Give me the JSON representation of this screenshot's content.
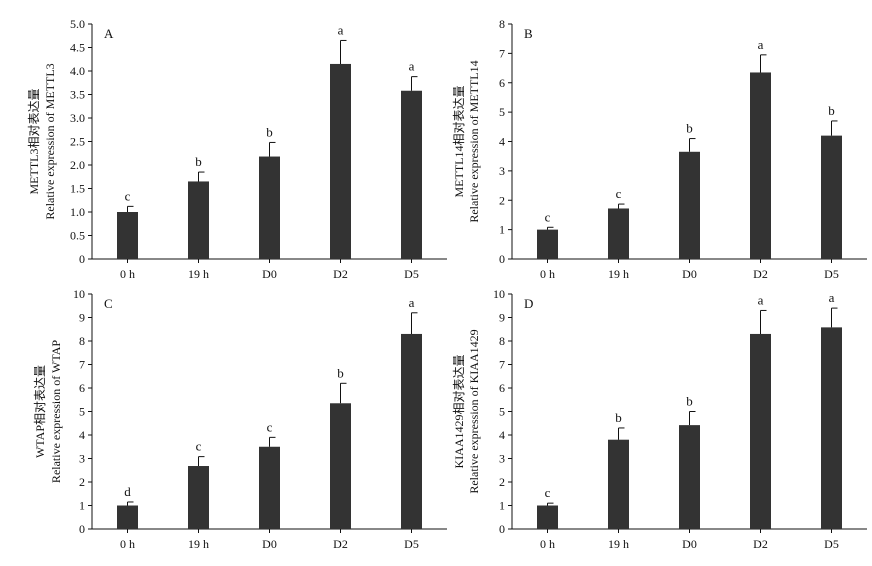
{
  "chart_data": [
    {
      "panel": "A",
      "type": "bar",
      "categories": [
        "0 h",
        "19 h",
        "D0",
        "D2",
        "D5"
      ],
      "values": [
        1.0,
        1.65,
        2.18,
        4.15,
        3.58
      ],
      "errors": [
        0.12,
        0.2,
        0.3,
        0.5,
        0.3
      ],
      "letters": [
        "c",
        "b",
        "b",
        "a",
        "a"
      ],
      "ylabel_cn": "METTL3相对表达量",
      "ylabel": "Relative expression of METTL3",
      "ylim": [
        0,
        5.0
      ],
      "yticks": [
        "0",
        "0.5",
        "1.0",
        "1.5",
        "2.0",
        "2.5",
        "3.0",
        "3.5",
        "4.0",
        "4.5",
        "5.0"
      ],
      "grid": false
    },
    {
      "panel": "B",
      "type": "bar",
      "categories": [
        "0 h",
        "19 h",
        "D0",
        "D2",
        "D5"
      ],
      "values": [
        1.0,
        1.72,
        3.65,
        6.35,
        4.2
      ],
      "errors": [
        0.08,
        0.15,
        0.45,
        0.6,
        0.5
      ],
      "letters": [
        "c",
        "c",
        "b",
        "a",
        "b"
      ],
      "ylabel_cn": "METTL14相对表达量",
      "ylabel": "Relative expression of METTL14",
      "ylim": [
        0,
        8
      ],
      "yticks": [
        "0",
        "1",
        "2",
        "3",
        "4",
        "5",
        "6",
        "7",
        "8"
      ],
      "grid": false
    },
    {
      "panel": "C",
      "type": "bar",
      "categories": [
        "0 h",
        "19 h",
        "D0",
        "D2",
        "D5"
      ],
      "values": [
        1.0,
        2.68,
        3.5,
        5.35,
        8.3
      ],
      "errors": [
        0.15,
        0.4,
        0.4,
        0.85,
        0.9
      ],
      "letters": [
        "d",
        "c",
        "c",
        "b",
        "a"
      ],
      "ylabel_cn": "WTAP相对表达量",
      "ylabel": "Relative expression of WTAP",
      "ylim": [
        0,
        10
      ],
      "yticks": [
        "0",
        "1",
        "2",
        "3",
        "4",
        "5",
        "6",
        "7",
        "8",
        "9",
        "10"
      ],
      "grid": false
    },
    {
      "panel": "D",
      "type": "bar",
      "categories": [
        "0 h",
        "19 h",
        "D0",
        "D2",
        "D5"
      ],
      "values": [
        1.0,
        3.8,
        4.42,
        8.3,
        8.58
      ],
      "errors": [
        0.1,
        0.5,
        0.58,
        1.0,
        0.82
      ],
      "letters": [
        "c",
        "b",
        "b",
        "a",
        "a"
      ],
      "ylabel_cn": "KIAA1429相对表达量",
      "ylabel": "Relative expression of KIAA1429",
      "ylim": [
        0,
        10
      ],
      "yticks": [
        "0",
        "1",
        "2",
        "3",
        "4",
        "5",
        "6",
        "7",
        "8",
        "9",
        "10"
      ],
      "grid": false
    }
  ],
  "colors": {
    "bar": "#333333",
    "axis": "#111111"
  }
}
